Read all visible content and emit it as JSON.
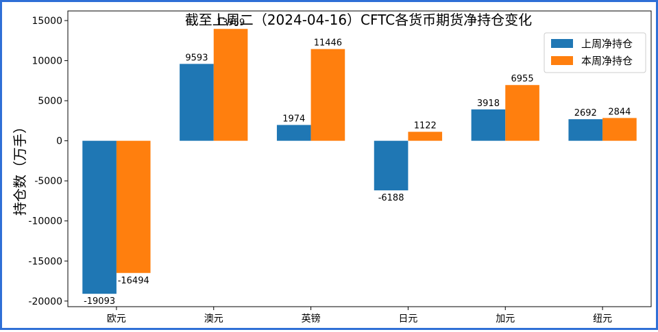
{
  "chart_data": {
    "type": "bar",
    "title": "截至上周二（2024-04-16）CFTC各货币期货净持仓变化",
    "xlabel": "",
    "ylabel": "持仓数（万手）",
    "categories": [
      "欧元",
      "澳元",
      "英镑",
      "日元",
      "加元",
      "纽元"
    ],
    "series": [
      {
        "name": "上周净持仓",
        "color": "#1f77b4",
        "values": [
          -19093,
          9593,
          1974,
          -6188,
          3918,
          2692
        ]
      },
      {
        "name": "本周净持仓",
        "color": "#ff7f0e",
        "values": [
          -16494,
          13959,
          11446,
          1122,
          6955,
          2844
        ]
      }
    ],
    "ylim": [
      -20700,
      16200
    ],
    "yticks": [
      -20000,
      -15000,
      -10000,
      -5000,
      0,
      5000,
      10000,
      15000
    ],
    "grid": false,
    "legend_position": "top-right"
  }
}
